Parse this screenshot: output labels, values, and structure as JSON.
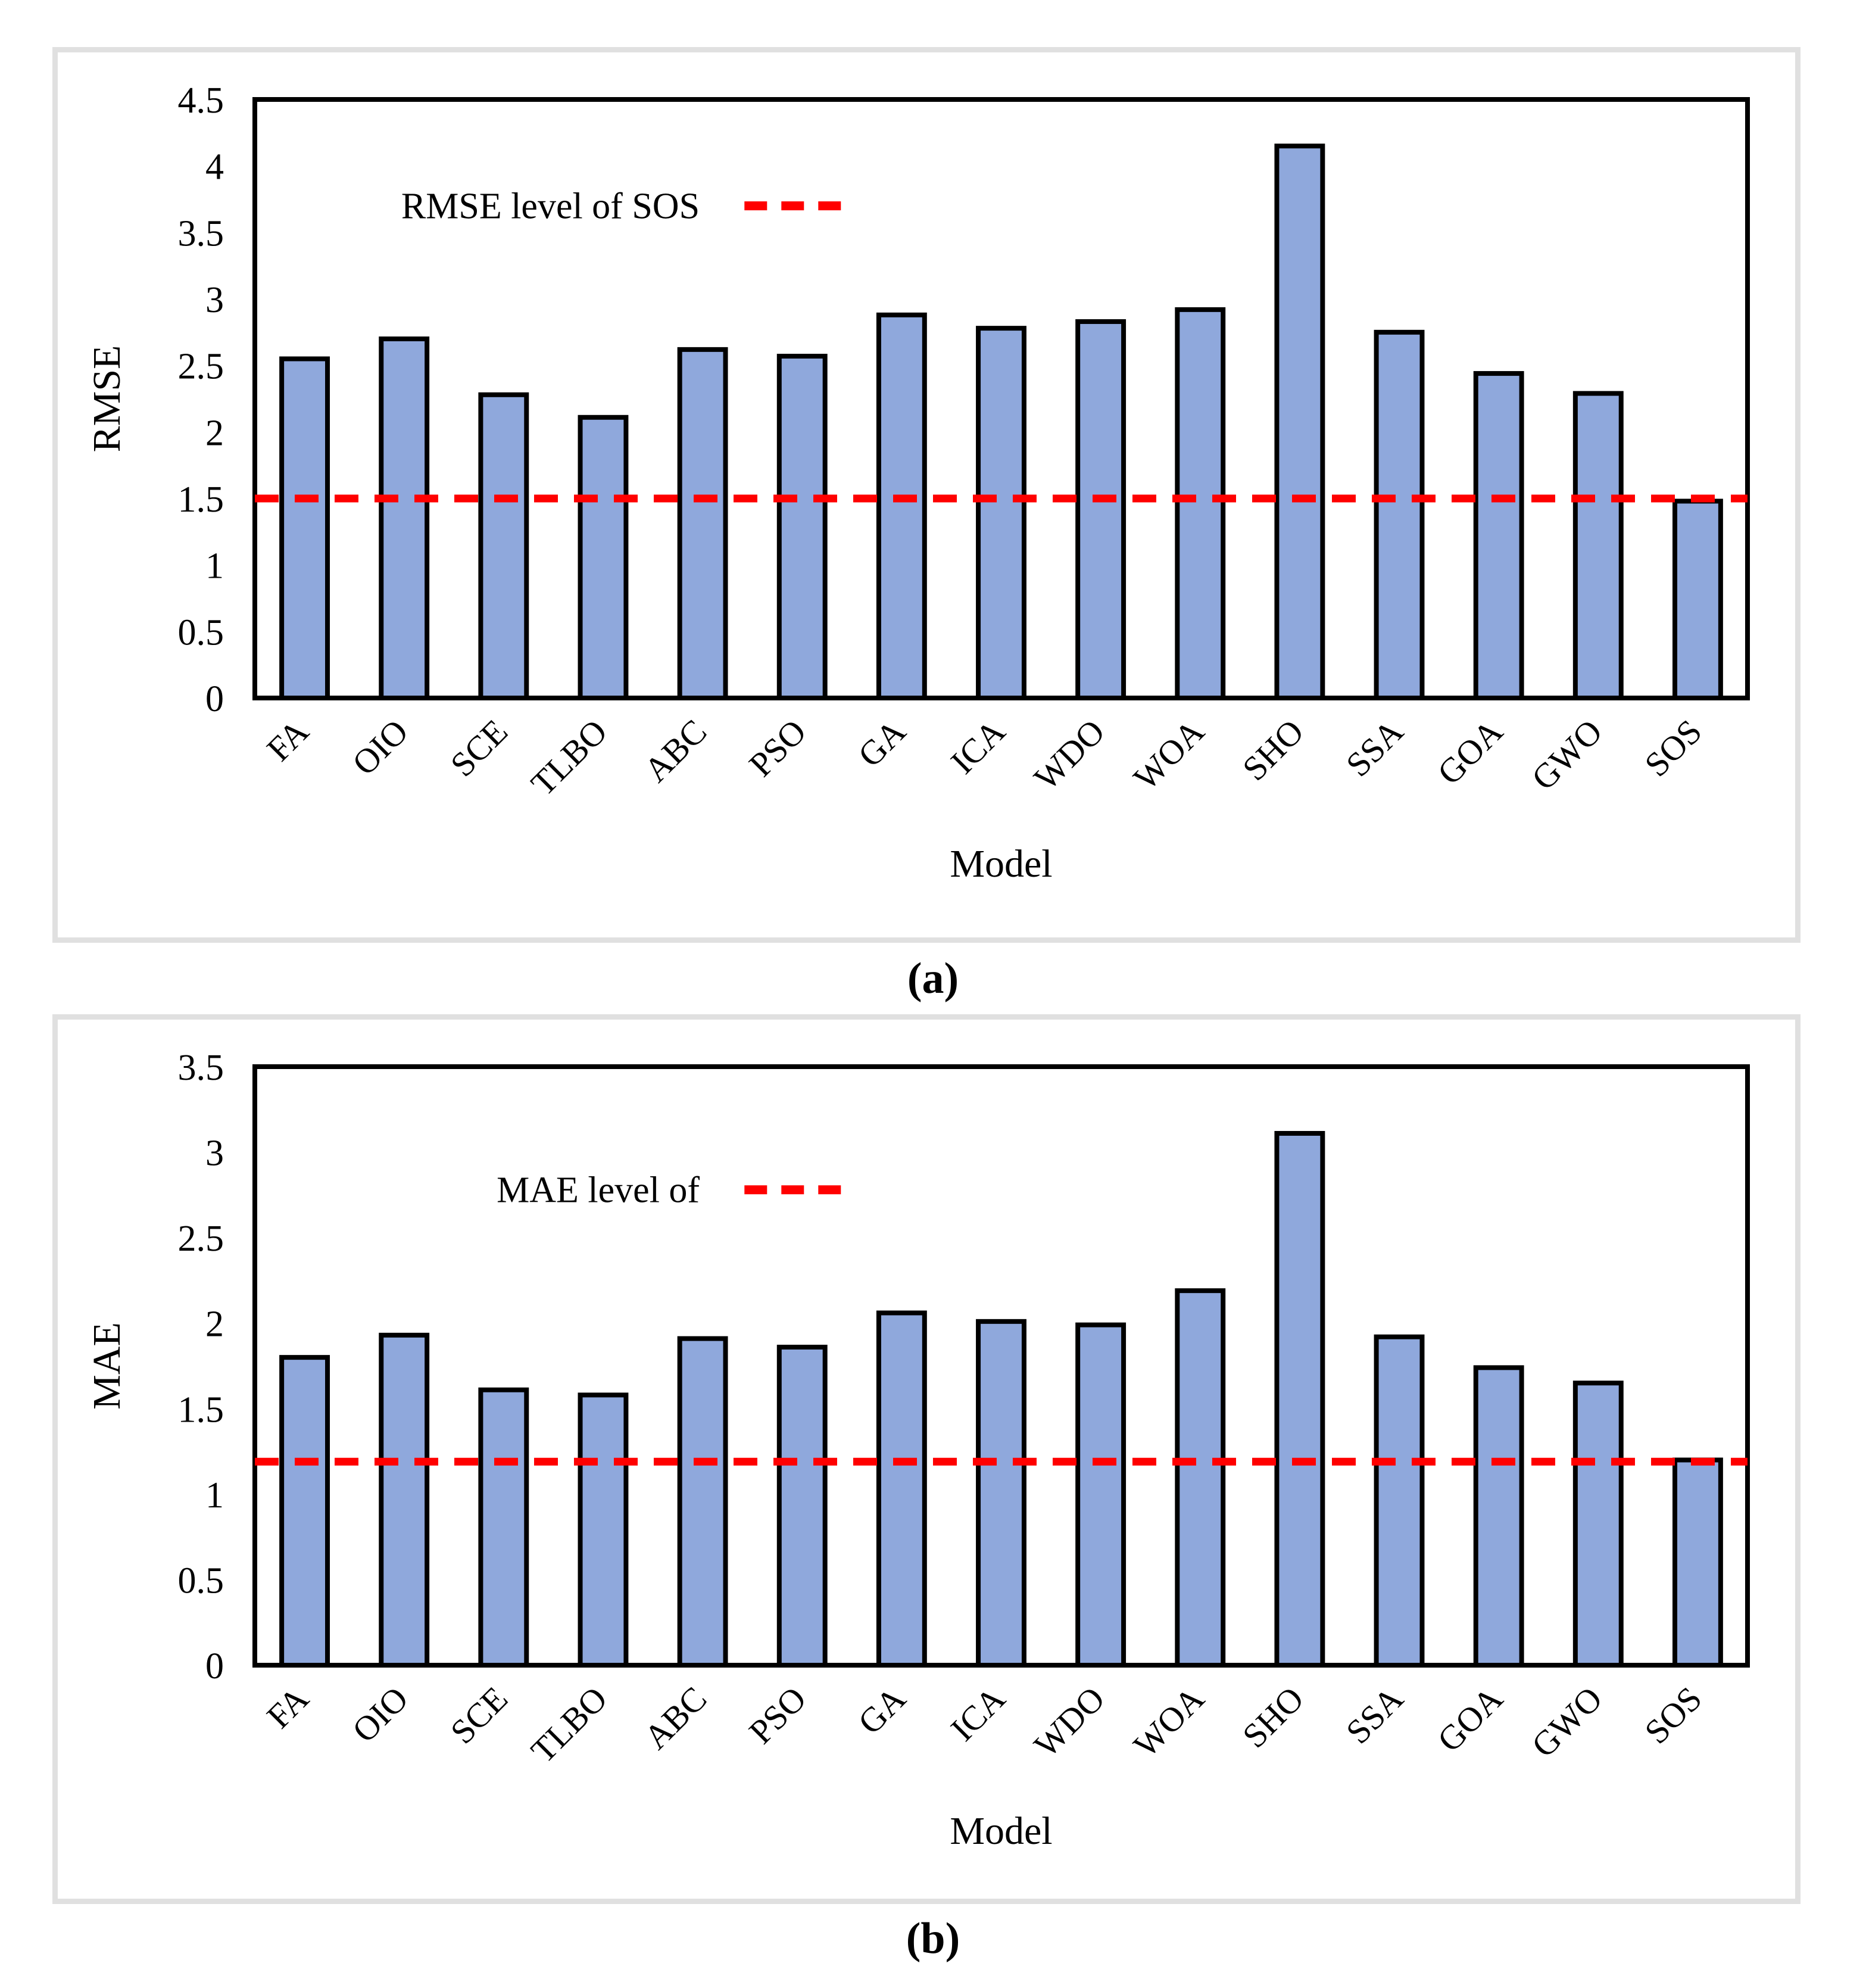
{
  "figure": {
    "captions": [
      "(a)",
      "(b)"
    ]
  },
  "colors": {
    "bar_fill": "#8FA8DC",
    "bar_border": "#000000",
    "ref_line_red": "#FF0000",
    "panel_border": "#E0E0E0",
    "plot_border": "#000000",
    "text": "#000000",
    "background": "#FFFFFF"
  },
  "chart_data": [
    {
      "id": "a",
      "type": "bar",
      "title": "",
      "xlabel": "Model",
      "ylabel": "RMSE",
      "categories": [
        "FA",
        "OIO",
        "SCE",
        "TLBO",
        "ABC",
        "PSO",
        "GA",
        "ICA",
        "WDO",
        "WOA",
        "SHO",
        "SSA",
        "GOA",
        "GWO",
        "SOS"
      ],
      "values": [
        2.55,
        2.7,
        2.28,
        2.11,
        2.62,
        2.57,
        2.88,
        2.78,
        2.83,
        2.92,
        4.15,
        2.75,
        2.44,
        2.29,
        1.48
      ],
      "ylim": [
        0,
        4.5
      ],
      "ytick_step": 0.5,
      "ytick_labels": [
        "0",
        "0.5",
        "1",
        "1.5",
        "2",
        "2.5",
        "3",
        "3.5",
        "4",
        "4.5"
      ],
      "grid": false,
      "legend_position": "inside-upper-left",
      "ref_line": {
        "value": 1.5,
        "label": "RMSE level of SOS",
        "style": "dashed",
        "color": "#FF0000"
      }
    },
    {
      "id": "b",
      "type": "bar",
      "title": "",
      "xlabel": "Model",
      "ylabel": "MAE",
      "categories": [
        "FA",
        "OIO",
        "SCE",
        "TLBO",
        "ABC",
        "PSO",
        "GA",
        "ICA",
        "WDO",
        "WOA",
        "SHO",
        "SSA",
        "GOA",
        "GWO",
        "SOS"
      ],
      "values": [
        1.8,
        1.93,
        1.61,
        1.58,
        1.91,
        1.86,
        2.06,
        2.01,
        1.99,
        2.19,
        3.11,
        1.92,
        1.74,
        1.65,
        1.2
      ],
      "ylim": [
        0,
        3.5
      ],
      "ytick_step": 0.5,
      "ytick_labels": [
        "0",
        "0.5",
        "1",
        "1.5",
        "2",
        "2.5",
        "3",
        "3.5"
      ],
      "grid": false,
      "legend_position": "inside-upper-left",
      "ref_line": {
        "value": 1.19,
        "label": "MAE level of",
        "style": "dashed",
        "color": "#FF0000"
      }
    }
  ]
}
